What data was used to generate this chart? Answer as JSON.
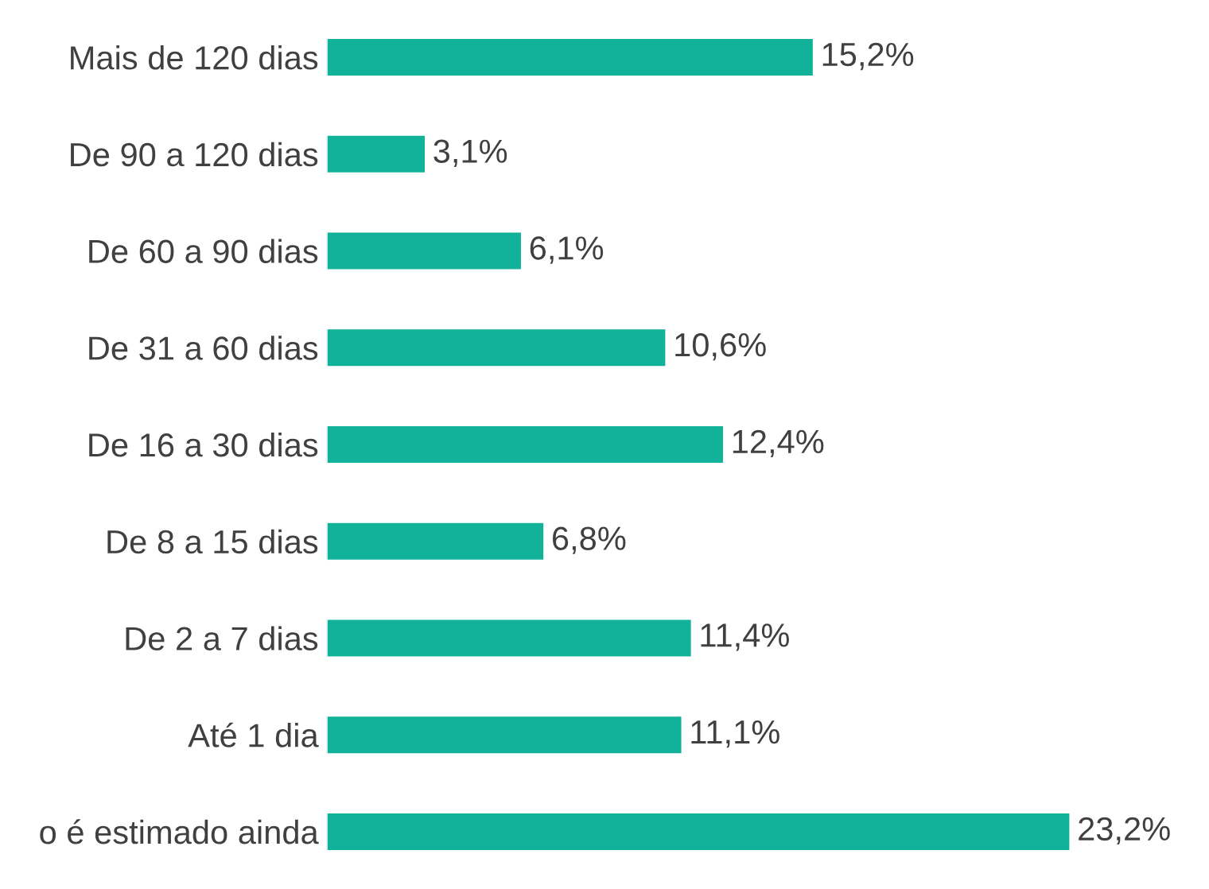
{
  "chart_data": {
    "type": "bar",
    "orientation": "horizontal",
    "categories": [
      "Mais de 120 dias",
      "De 90 a 120 dias",
      "De 60 a 90 dias",
      "De 31 a 60 dias",
      "De 16 a 30 dias",
      "De 8 a 15 dias",
      "De 2 a 7 dias",
      "Até 1 dia",
      "o é estimado ainda"
    ],
    "values": [
      15.2,
      3.1,
      6.1,
      10.6,
      12.4,
      6.8,
      11.4,
      11.1,
      23.2
    ],
    "value_labels": [
      "15,2%",
      "3,1%",
      "6,1%",
      "10,6%",
      "12,4%",
      "6,8%",
      "11,4%",
      "11,1%",
      "23,2%"
    ],
    "color": "#12b29a",
    "grid": false,
    "legend": false
  }
}
